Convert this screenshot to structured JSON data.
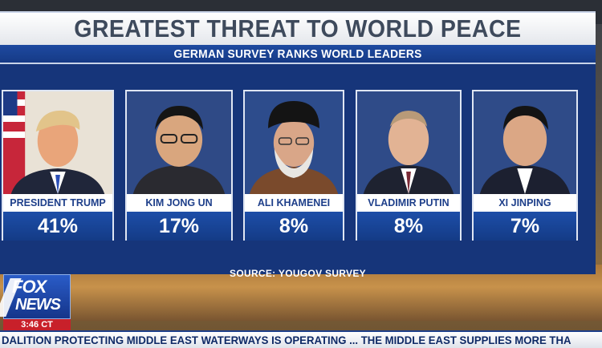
{
  "graphic": {
    "title": "GREATEST THREAT TO WORLD PEACE",
    "subtitle": "GERMAN SURVEY RANKS WORLD LEADERS",
    "source": "SOURCE: YOUGOV SURVEY"
  },
  "leaders": [
    {
      "name": "PRESIDENT TRUMP",
      "percent": "41%"
    },
    {
      "name": "KIM JONG UN",
      "percent": "17%"
    },
    {
      "name": "ALI KHAMENEI",
      "percent": "8%"
    },
    {
      "name": "VLADIMIR PUTIN",
      "percent": "8%"
    },
    {
      "name": "XI JINPING",
      "percent": "7%"
    }
  ],
  "network": {
    "logo_line1": "FOX",
    "logo_line2": "NEWS",
    "time": "3:46 CT"
  },
  "ticker": {
    "text": "DALITION PROTECTING MIDDLE EAST WATERWAYS IS OPERATING ... THE MIDDLE EAST SUPPLIES MORE THA"
  },
  "colors": {
    "panel_blue": "#16357a",
    "title_gray": "#3e4a5c",
    "name_blue": "#1e3f8a",
    "fox_red": "#c8202a"
  }
}
